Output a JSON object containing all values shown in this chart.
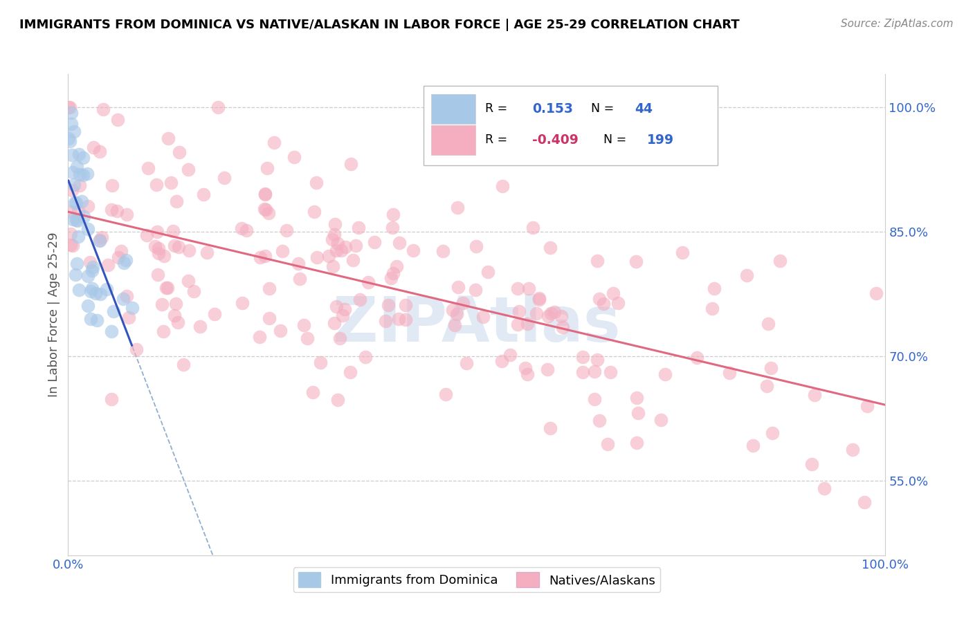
{
  "title": "IMMIGRANTS FROM DOMINICA VS NATIVE/ALASKAN IN LABOR FORCE | AGE 25-29 CORRELATION CHART",
  "source": "Source: ZipAtlas.com",
  "ylabel": "In Labor Force | Age 25-29",
  "xlim": [
    0.0,
    1.0
  ],
  "ylim": [
    0.46,
    1.04
  ],
  "blue_R_str": "0.153",
  "blue_N_str": "44",
  "pink_R_str": "-0.409",
  "pink_N_str": "199",
  "blue_color": "#a8c8e8",
  "pink_color": "#f4aec0",
  "blue_line_color": "#3355bb",
  "pink_line_color": "#e06880",
  "dashed_line_color": "#90aed0",
  "grid_color": "#cccccc",
  "right_yticks": [
    1.0,
    0.85,
    0.7,
    0.55
  ],
  "right_yticklabels": [
    "100.0%",
    "85.0%",
    "70.0%",
    "55.0%"
  ],
  "tick_color": "#3366cc",
  "legend_blue_label": "Immigrants from Dominica",
  "legend_pink_label": "Natives/Alaskans",
  "watermark": "ZIPAtlas",
  "blue_R_color": "#3366cc",
  "blue_N_color": "#3366cc",
  "pink_R_color": "#cc3366",
  "pink_N_color": "#3366cc"
}
